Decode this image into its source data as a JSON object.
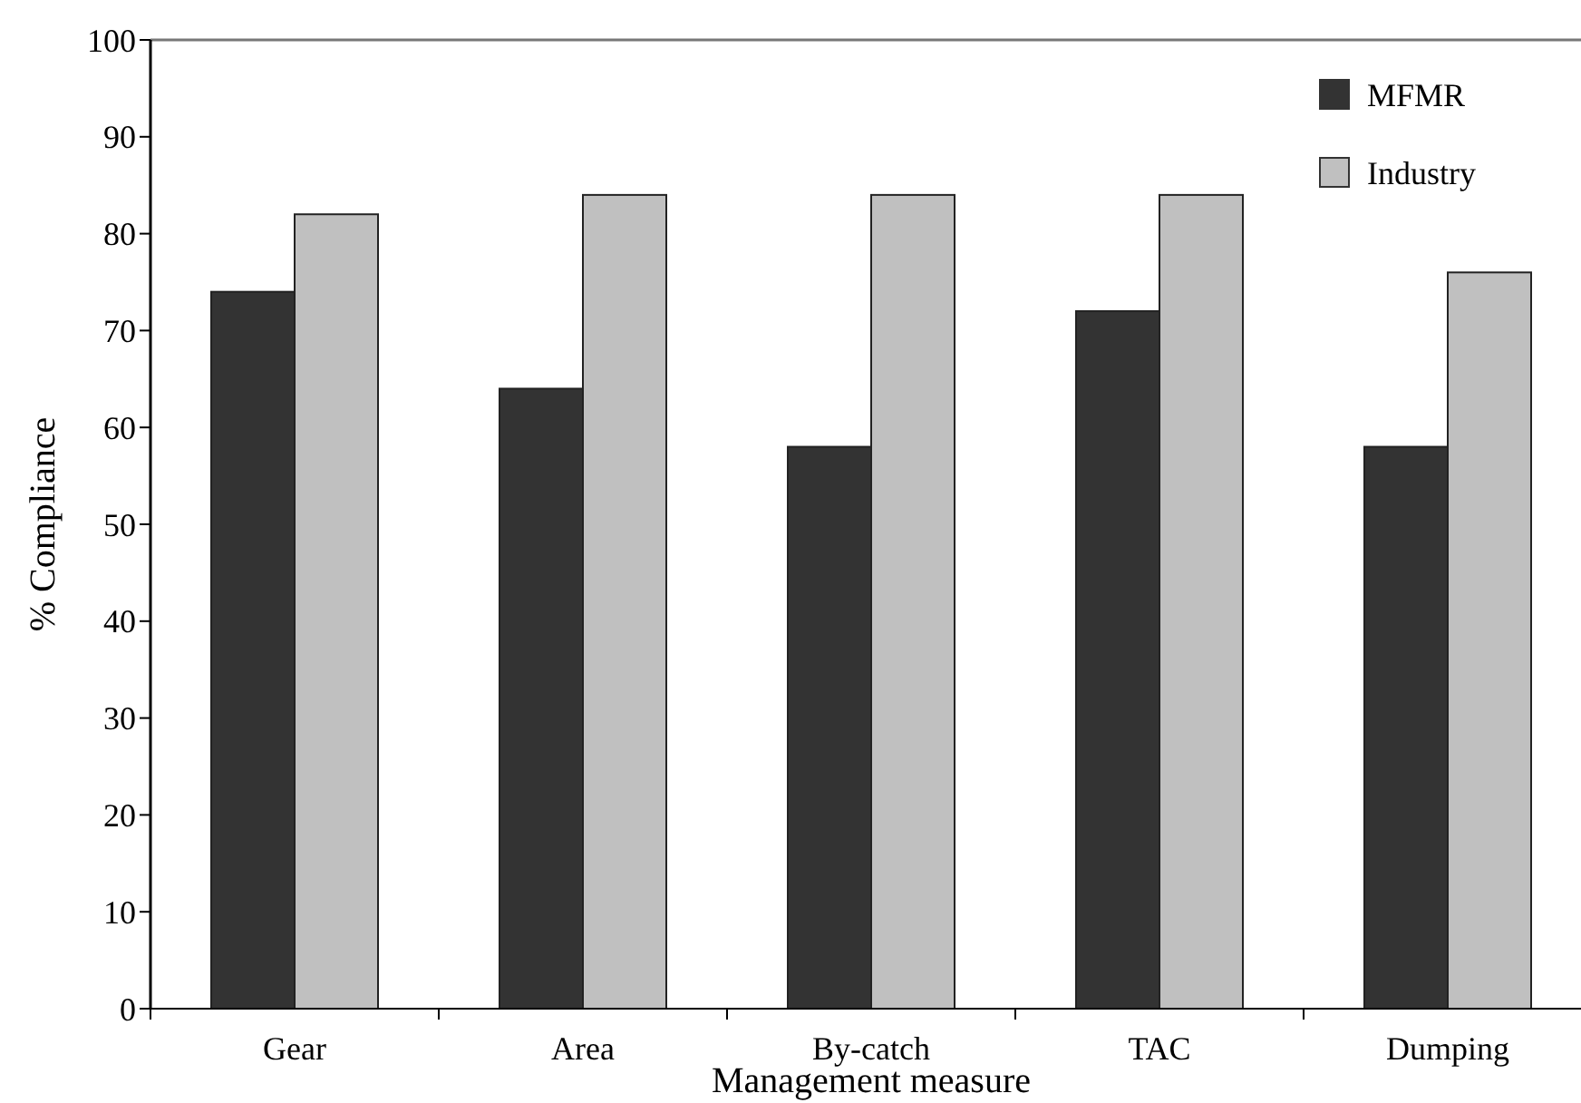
{
  "chart_data": {
    "type": "bar",
    "xlabel": "Management measure",
    "ylabel": "% Compliance",
    "categories": [
      "Gear",
      "Area",
      "By-catch",
      "TAC",
      "Dumping"
    ],
    "series": [
      {
        "name": "MFMR",
        "color": "#333333",
        "values": [
          74,
          64,
          58,
          72,
          58
        ]
      },
      {
        "name": "Industry",
        "color": "#c0c0c0",
        "values": [
          82,
          84,
          84,
          84,
          76
        ]
      }
    ],
    "ylim": [
      0,
      100
    ],
    "yticks": [
      0,
      10,
      20,
      30,
      40,
      50,
      60,
      70,
      80,
      90,
      100
    ],
    "legend": "top right"
  }
}
